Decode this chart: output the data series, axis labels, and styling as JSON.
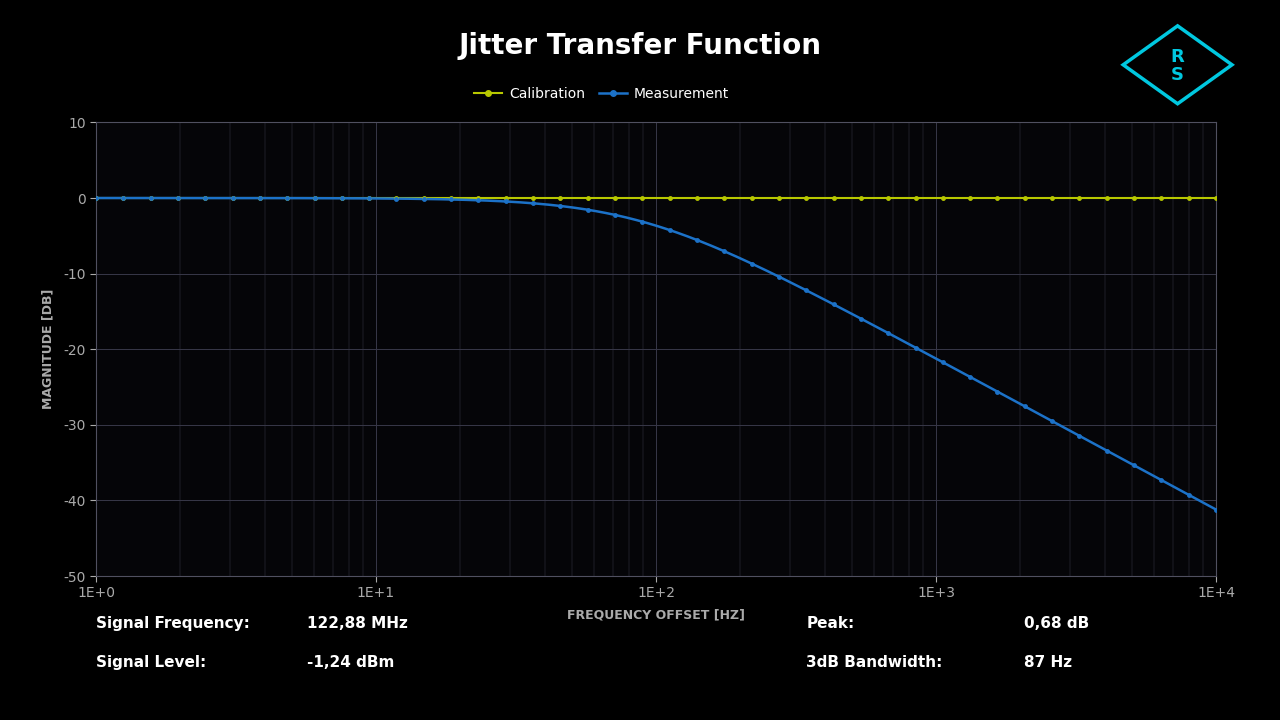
{
  "title": "Jitter Transfer Function",
  "background_color": "#000000",
  "plot_bg_color": "#050508",
  "grid_color": "#383848",
  "title_color": "#ffffff",
  "xlabel": "FREQUENCY OFFSET [HZ]",
  "ylabel": "MAGNITUDE [DB]",
  "xlabel_color": "#aaaaaa",
  "ylabel_color": "#aaaaaa",
  "tick_color": "#aaaaaa",
  "xlim": [
    1,
    10000
  ],
  "ylim": [
    -50,
    10
  ],
  "yticks": [
    -50,
    -40,
    -30,
    -20,
    -10,
    0,
    10
  ],
  "calibration_color": "#b8c800",
  "measurement_color": "#1c72c8",
  "bandwidth_3db": 87,
  "rs_logo_color": "#00c8e0",
  "info_left_line1_label": "Signal Frequency:",
  "info_left_line1_value": "122,88 MHz",
  "info_left_line2_label": "Signal Level:",
  "info_left_line2_value": "-1,24 dBm",
  "info_right_line1_label": "Peak:",
  "info_right_line1_value": "0,68 dB",
  "info_right_line2_label": "3dB Bandwidth:",
  "info_right_line2_value": "87 Hz"
}
